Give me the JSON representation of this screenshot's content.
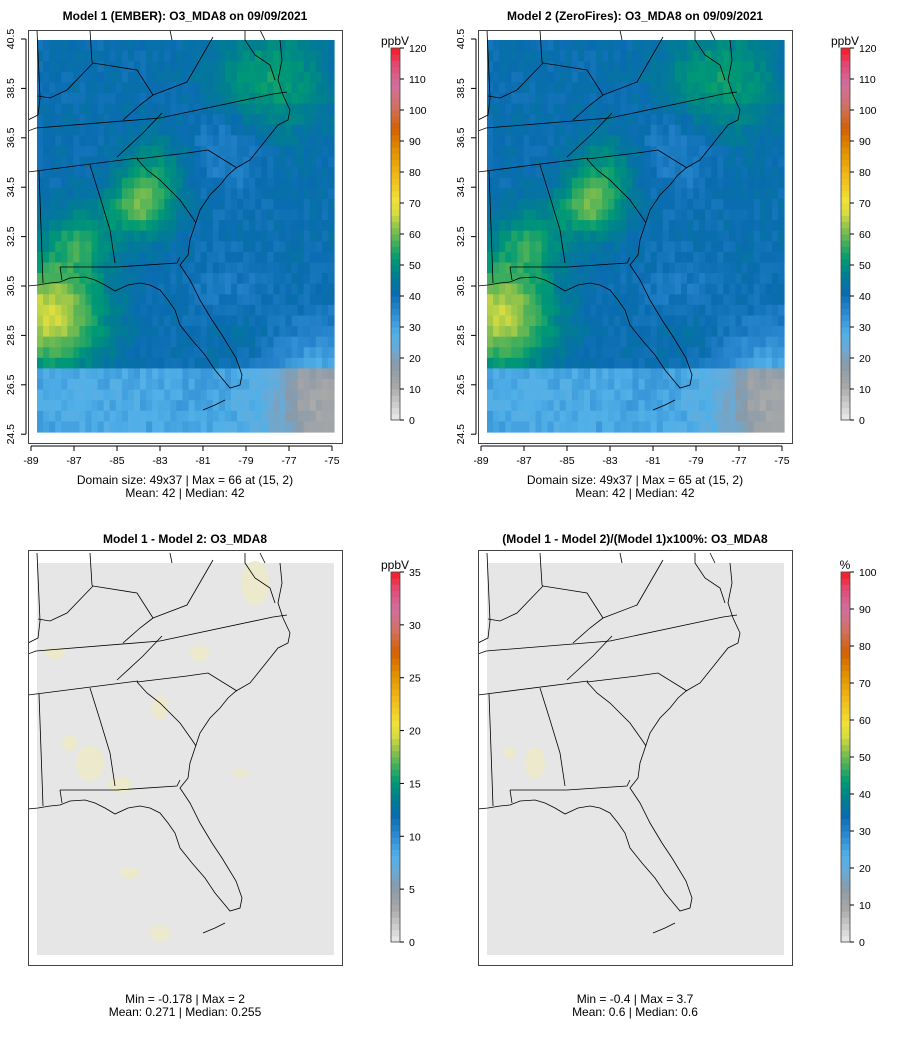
{
  "chart_data": [
    {
      "type": "heatmap",
      "title": "Model 1 (EMBER): O3_MDA8 on 09/09/2021",
      "x_ticks": [
        "-89",
        "-87",
        "-85",
        "-83",
        "-81",
        "-79",
        "-77",
        "-75"
      ],
      "y_ticks": [
        "40.5",
        "38.5",
        "36.5",
        "34.5",
        "32.5",
        "30.5",
        "28.5",
        "26.5",
        "24.5"
      ],
      "colorbar": {
        "unit": "ppbV",
        "range": [
          0,
          120
        ],
        "ticks": [
          "120",
          "110",
          "100",
          "90",
          "80",
          "70",
          "60",
          "50",
          "40",
          "30",
          "20",
          "10",
          "0"
        ]
      },
      "footer": [
        "Domain size: 49x37 | Max = 66 at (15, 2)",
        "Mean: 42 |  Median: 42"
      ],
      "field": {
        "base": 40,
        "max": 66,
        "mean": 42,
        "median": 42
      }
    },
    {
      "type": "heatmap",
      "title": "Model 2 (ZeroFires): O3_MDA8 on 09/09/2021",
      "x_ticks": [
        "-89",
        "-87",
        "-85",
        "-83",
        "-81",
        "-79",
        "-77",
        "-75"
      ],
      "y_ticks": [
        "40.5",
        "38.5",
        "36.5",
        "34.5",
        "32.5",
        "30.5",
        "28.5",
        "26.5",
        "24.5"
      ],
      "colorbar": {
        "unit": "ppbV",
        "range": [
          0,
          120
        ],
        "ticks": [
          "120",
          "110",
          "100",
          "90",
          "80",
          "70",
          "60",
          "50",
          "40",
          "30",
          "20",
          "10",
          "0"
        ]
      },
      "footer": [
        "Domain size: 49x37 | Max = 65 at (15, 2)",
        "Mean: 42 |  Median: 42"
      ],
      "field": {
        "base": 40,
        "max": 65,
        "mean": 42,
        "median": 42
      }
    },
    {
      "type": "heatmap",
      "title": "Model 1 - Model 2: O3_MDA8",
      "colorbar": {
        "unit": "ppbV",
        "range": [
          0,
          35
        ],
        "ticks": [
          "35",
          "30",
          "25",
          "20",
          "15",
          "10",
          "5",
          "0"
        ]
      },
      "footer": [
        "Min = -0.178 | Max = 2",
        "Mean: 0.271 |  Median: 0.255"
      ],
      "field": {
        "min": -0.178,
        "max": 2,
        "mean": 0.271,
        "median": 0.255
      }
    },
    {
      "type": "heatmap",
      "title": "(Model 1 - Model 2)/(Model 1)x100%: O3_MDA8",
      "colorbar": {
        "unit": "%",
        "range": [
          0,
          100
        ],
        "ticks": [
          "100",
          "90",
          "80",
          "70",
          "60",
          "50",
          "40",
          "30",
          "20",
          "10",
          "0"
        ]
      },
      "footer": [
        "Min = -0.4 | Max = 3.7",
        "Mean: 0.6 |  Median: 0.6"
      ],
      "field": {
        "min": -0.4,
        "max": 3.7,
        "mean": 0.6,
        "median": 0.6
      }
    }
  ],
  "colors": {
    "background": "#e6e6e6",
    "border": "#000000",
    "frame": "#555555"
  }
}
